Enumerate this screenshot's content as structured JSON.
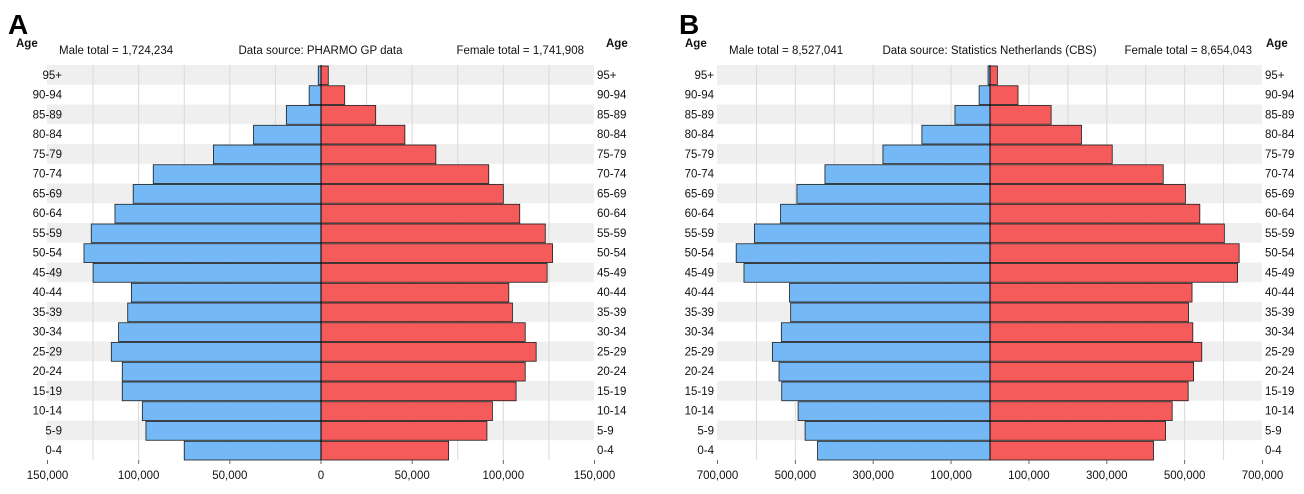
{
  "age_groups": [
    "0-4",
    "5-9",
    "10-14",
    "15-19",
    "20-24",
    "25-29",
    "30-34",
    "35-39",
    "40-44",
    "45-49",
    "50-54",
    "55-59",
    "60-64",
    "65-69",
    "70-74",
    "75-79",
    "80-84",
    "85-89",
    "90-94",
    "95+"
  ],
  "colors": {
    "male": "#74b9f5",
    "female": "#f55b5b",
    "stripe": "#efefef",
    "grid": "#d9d9d9",
    "bar_stroke": "#1a1a1a"
  },
  "chart_data": [
    {
      "panel_label": "A",
      "type": "bar",
      "orientation": "horizontal-population-pyramid",
      "age_axis_label": "Age",
      "male_total_text": "Male total = 1,724,234",
      "female_total_text": "Female total = 1,741,908",
      "source_text": "Data source: PHARMO GP data",
      "x_max": 150000,
      "x_ticks": [
        -150000,
        -100000,
        -50000,
        0,
        50000,
        100000,
        150000
      ],
      "x_tick_labels": [
        "150,000",
        "100,000",
        "50,000",
        "0",
        "50,000",
        "100,000",
        "150,000"
      ],
      "grid_values": [
        -125000,
        -100000,
        -75000,
        -50000,
        -25000,
        0,
        25000,
        50000,
        75000,
        100000,
        125000
      ],
      "categories": [
        "0-4",
        "5-9",
        "10-14",
        "15-19",
        "20-24",
        "25-29",
        "30-34",
        "35-39",
        "40-44",
        "45-49",
        "50-54",
        "55-59",
        "60-64",
        "65-69",
        "70-74",
        "75-79",
        "80-84",
        "85-89",
        "90-94",
        "95+"
      ],
      "series": [
        {
          "name": "Male",
          "values": [
            75000,
            96000,
            98000,
            109000,
            109000,
            115000,
            111000,
            106000,
            104000,
            125000,
            130000,
            126000,
            113000,
            103000,
            92000,
            59000,
            37000,
            19000,
            6500,
            1500
          ]
        },
        {
          "name": "Female",
          "values": [
            70000,
            91000,
            94000,
            107000,
            112000,
            118000,
            112000,
            105000,
            103000,
            124000,
            127000,
            123000,
            109000,
            100000,
            92000,
            63000,
            46000,
            30000,
            13000,
            4000
          ]
        }
      ]
    },
    {
      "panel_label": "B",
      "type": "bar",
      "orientation": "horizontal-population-pyramid",
      "age_axis_label": "Age",
      "male_total_text": "Male total = 8,527,041",
      "female_total_text": "Female total = 8,654,043",
      "source_text": "Data source: Statistics Netherlands (CBS)",
      "x_max": 700000,
      "x_ticks": [
        -700000,
        -500000,
        -300000,
        -100000,
        100000,
        300000,
        500000,
        700000
      ],
      "x_tick_labels": [
        "700,000",
        "500,000",
        "300,000",
        "100,000",
        "100,000",
        "300,000",
        "500,000",
        "700,000"
      ],
      "grid_values": [
        -600000,
        -500000,
        -400000,
        -300000,
        -200000,
        -100000,
        100000,
        200000,
        300000,
        400000,
        500000,
        600000
      ],
      "categories": [
        "0-4",
        "5-9",
        "10-14",
        "15-19",
        "20-24",
        "25-29",
        "30-34",
        "35-39",
        "40-44",
        "45-49",
        "50-54",
        "55-59",
        "60-64",
        "65-69",
        "70-74",
        "75-79",
        "80-84",
        "85-89",
        "90-94",
        "95+"
      ],
      "series": [
        {
          "name": "Male",
          "values": [
            443000,
            475000,
            493000,
            535000,
            542000,
            559000,
            536000,
            512000,
            515000,
            632000,
            652000,
            605000,
            538000,
            496000,
            424000,
            275000,
            175000,
            90000,
            28000,
            5000
          ]
        },
        {
          "name": "Female",
          "values": [
            420000,
            451000,
            468000,
            509000,
            523000,
            544000,
            521000,
            510000,
            519000,
            636000,
            640000,
            602000,
            539000,
            502000,
            445000,
            314000,
            235000,
            157000,
            72000,
            19000
          ]
        }
      ]
    }
  ]
}
